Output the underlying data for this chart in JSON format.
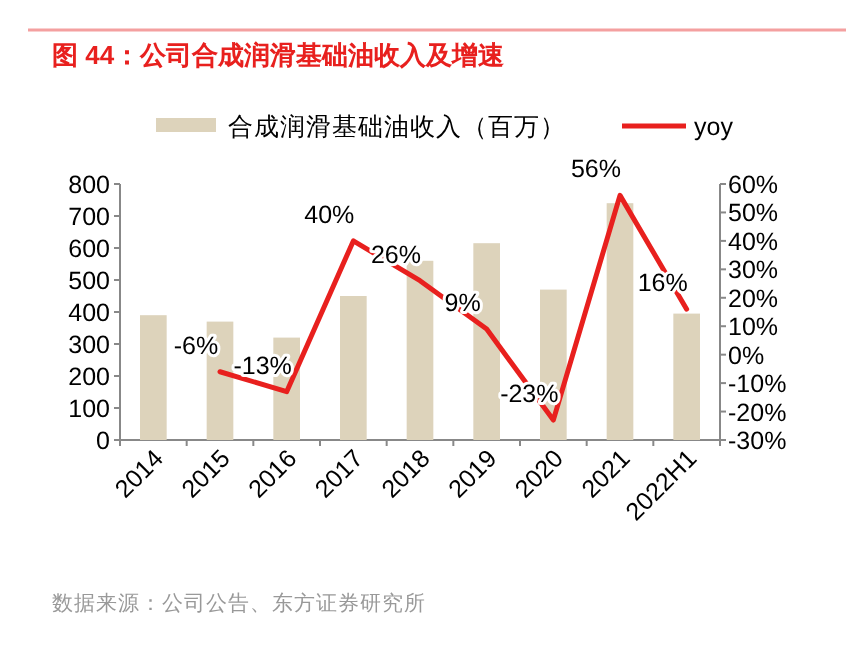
{
  "chart_data": {
    "type": "bar",
    "title": "图 44：公司合成润滑基础油收入及增速",
    "categories": [
      "2014",
      "2015",
      "2016",
      "2017",
      "2018",
      "2019",
      "2020",
      "2021",
      "2022H1"
    ],
    "series": [
      {
        "name": "合成润滑基础油收入（百万）",
        "color": "#ddd3bb",
        "values": [
          390,
          370,
          320,
          450,
          560,
          615,
          470,
          740,
          395
        ]
      },
      {
        "name": "yoy",
        "type": "line",
        "axis": "y2",
        "color": "#e8201e",
        "values": [
          null,
          -6,
          -13,
          40,
          26,
          9,
          -23,
          56,
          16
        ],
        "value_labels": [
          null,
          "-6%",
          "-13%",
          "40%",
          "26%",
          "9%",
          "-23%",
          "56%",
          "16%"
        ]
      }
    ],
    "ylim": [
      0,
      800
    ],
    "yticks": [
      0,
      100,
      200,
      300,
      400,
      500,
      600,
      700,
      800
    ],
    "y2lim": [
      -30,
      60
    ],
    "y2ticks": [
      {
        "value": -30,
        "label": "-30%"
      },
      {
        "value": -20,
        "label": "-20%"
      },
      {
        "value": -10,
        "label": "-10%"
      },
      {
        "value": 0,
        "label": "0%"
      },
      {
        "value": 10,
        "label": "10%"
      },
      {
        "value": 20,
        "label": "20%"
      },
      {
        "value": 30,
        "label": "30%"
      },
      {
        "value": 40,
        "label": "40%"
      },
      {
        "value": 50,
        "label": "50%"
      },
      {
        "value": 60,
        "label": "60%"
      }
    ],
    "grid": false,
    "legend": "top",
    "annotations": [
      "数据来源：公司公告、东方证券研究所"
    ]
  }
}
